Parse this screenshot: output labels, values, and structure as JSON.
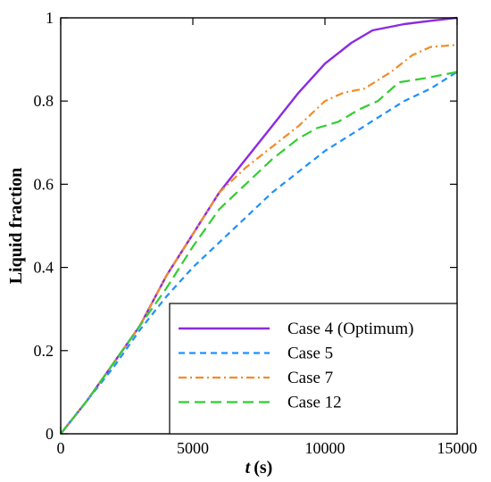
{
  "chart_data": {
    "type": "line",
    "xlabel_italic": "t",
    "xlabel_unit": "(s)",
    "ylabel": "Liquid fraction",
    "xlim": [
      0,
      15000
    ],
    "ylim": [
      0,
      1
    ],
    "x_ticks": [
      0,
      5000,
      10000,
      15000
    ],
    "x_tick_labels": [
      "0",
      "5000",
      "10000",
      "15000"
    ],
    "y_ticks": [
      0,
      0.2,
      0.4,
      0.6,
      0.8,
      1
    ],
    "y_tick_labels": [
      "0",
      "0.2",
      "0.4",
      "0.6",
      "0.8",
      "1"
    ],
    "grid": false,
    "legend_position": "bottom-right",
    "series": [
      {
        "name": "Case 4 (Optimum)",
        "color": "#8a2be2",
        "dash": "solid",
        "x": [
          0,
          1000,
          2000,
          3000,
          4000,
          5000,
          6000,
          7000,
          8000,
          9000,
          10000,
          11000,
          11800,
          13000,
          14000,
          15000
        ],
        "y": [
          0,
          0.08,
          0.17,
          0.26,
          0.38,
          0.48,
          0.58,
          0.66,
          0.74,
          0.82,
          0.89,
          0.94,
          0.97,
          0.985,
          0.993,
          1.0
        ]
      },
      {
        "name": "Case 5",
        "color": "#1e90ff",
        "dash": "short-dash",
        "x": [
          0,
          1000,
          2000,
          3000,
          4000,
          5000,
          6000,
          7000,
          8000,
          9000,
          10000,
          11000,
          12000,
          13000,
          14000,
          15000
        ],
        "y": [
          0,
          0.08,
          0.16,
          0.25,
          0.33,
          0.4,
          0.46,
          0.52,
          0.58,
          0.63,
          0.68,
          0.72,
          0.76,
          0.8,
          0.83,
          0.87
        ]
      },
      {
        "name": "Case 7",
        "color": "#f08c28",
        "dash": "dash-dot",
        "x": [
          0,
          1000,
          2000,
          3000,
          4000,
          5000,
          6000,
          7000,
          8000,
          9000,
          10000,
          10700,
          11500,
          12500,
          13300,
          14000,
          15000
        ],
        "y": [
          0,
          0.08,
          0.17,
          0.26,
          0.38,
          0.48,
          0.58,
          0.64,
          0.69,
          0.74,
          0.8,
          0.82,
          0.83,
          0.87,
          0.91,
          0.93,
          0.935
        ]
      },
      {
        "name": "Case 12",
        "color": "#32cd32",
        "dash": "long-dash",
        "x": [
          0,
          1000,
          2000,
          3000,
          4000,
          5000,
          6000,
          7000,
          8000,
          9000,
          9700,
          10500,
          11300,
          12000,
          12800,
          13800,
          15000
        ],
        "y": [
          0,
          0.08,
          0.17,
          0.26,
          0.35,
          0.45,
          0.54,
          0.6,
          0.66,
          0.71,
          0.735,
          0.75,
          0.78,
          0.8,
          0.845,
          0.855,
          0.87
        ]
      }
    ]
  }
}
